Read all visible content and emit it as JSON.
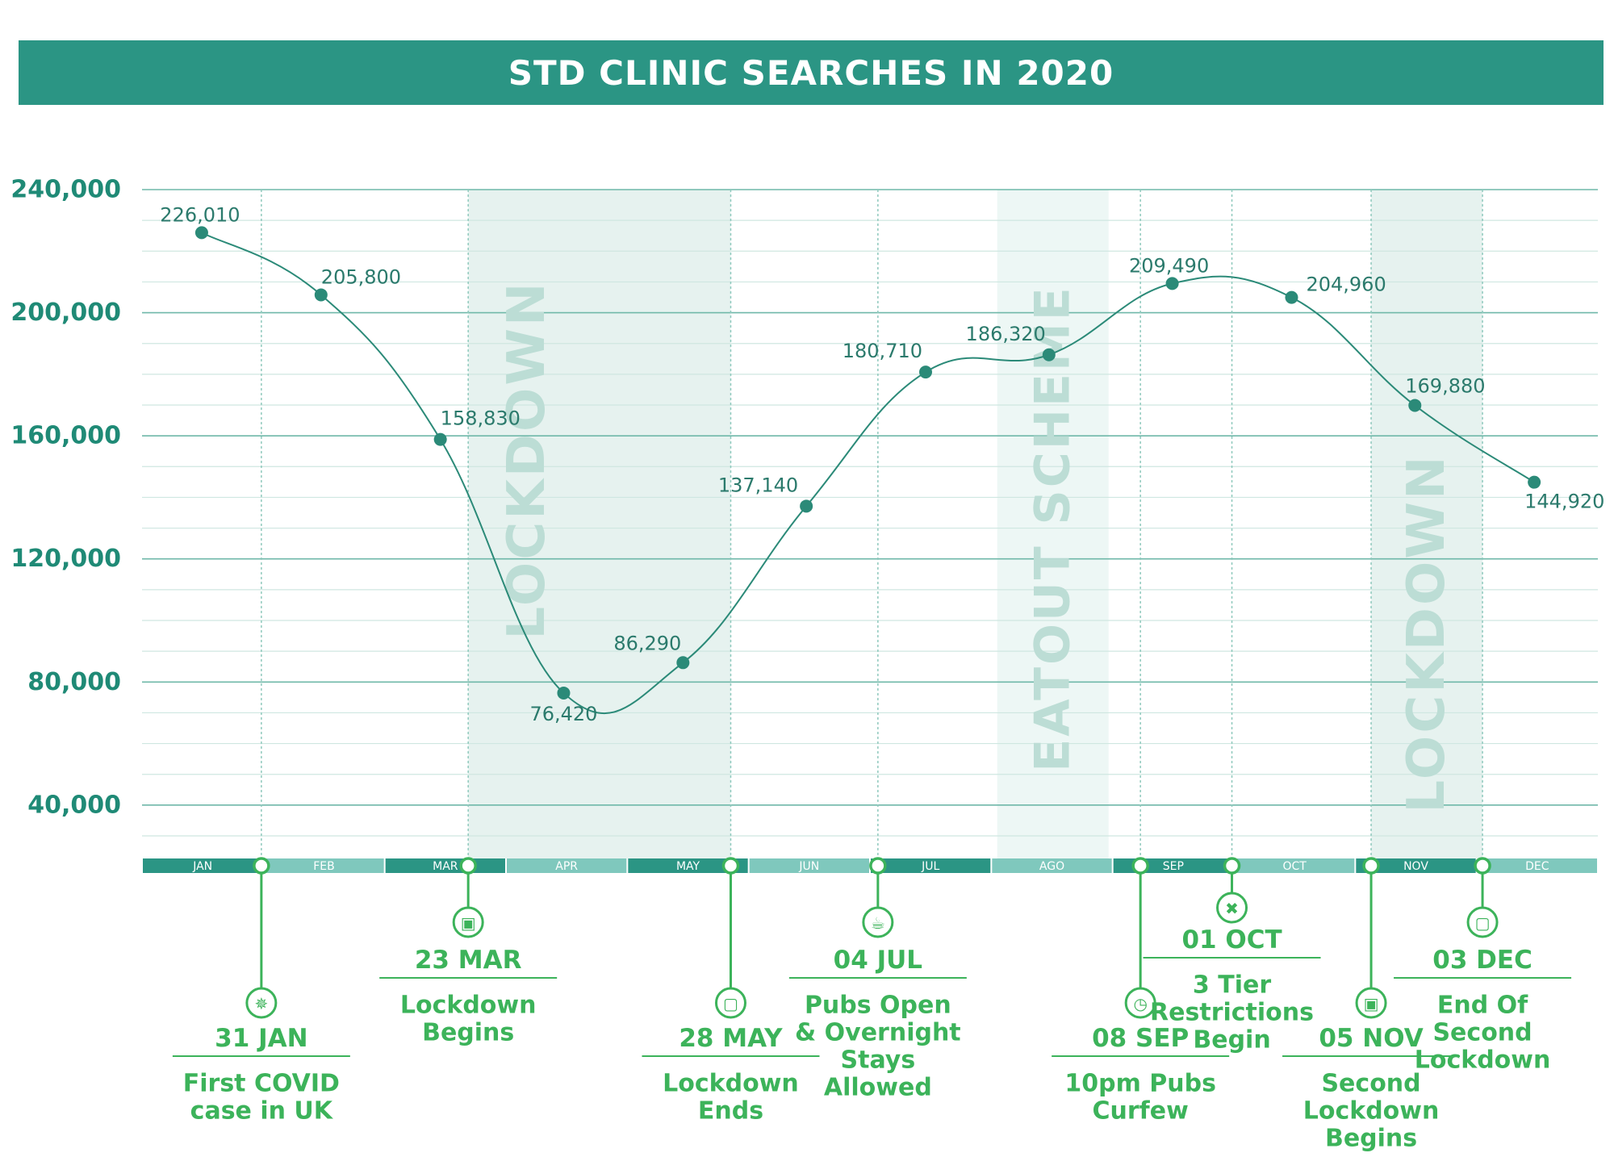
{
  "title": "STD CLINIC SEARCHES IN 2020",
  "colors": {
    "header": "#2b9584",
    "line": "#2b8a78",
    "point": "#2b8a78",
    "events": "#3cb35a",
    "month_dark": "#2b9584",
    "month_light": "#7fc8bd",
    "axis_label": "#1f8a76",
    "data_label": "#2b7a6c",
    "band_lockdown": "#e6f2ef",
    "band_eatout": "#edf7f5",
    "band_text": "#bcddd5",
    "grid_major": "#6fb8a9",
    "grid_minor": "#cfe7e1"
  },
  "chart_data": {
    "type": "line",
    "title": "STD CLINIC SEARCHES IN 2020",
    "xlabel": "",
    "ylabel": "",
    "ylim": [
      30000,
      240000
    ],
    "yticks": [
      40000,
      80000,
      120000,
      160000,
      200000,
      240000
    ],
    "ytick_labels": [
      "40,000",
      "80,000",
      "120,000",
      "160,000",
      "200,000",
      "240,000"
    ],
    "grid": true,
    "x_domain": [
      "2020-01-01",
      "2020-12-31"
    ],
    "months": [
      "JAN",
      "FEB",
      "MAR",
      "APR",
      "MAY",
      "JUN",
      "JUL",
      "AGO",
      "SEP",
      "OCT",
      "NOV",
      "DEC"
    ],
    "series": [
      {
        "points": [
          {
            "x": "2020-01-16",
            "y": 226010,
            "label": "226,010"
          },
          {
            "x": "2020-02-15",
            "y": 205800,
            "label": "205,800"
          },
          {
            "x": "2020-03-16",
            "y": 158830,
            "label": "158,830"
          },
          {
            "x": "2020-04-16",
            "y": 76420,
            "label": "76,420"
          },
          {
            "x": "2020-05-16",
            "y": 86290,
            "label": "86,290"
          },
          {
            "x": "2020-06-16",
            "y": 137140,
            "label": "137,140"
          },
          {
            "x": "2020-07-16",
            "y": 180710,
            "label": "180,710"
          },
          {
            "x": "2020-08-16",
            "y": 186320,
            "label": "186,320"
          },
          {
            "x": "2020-09-16",
            "y": 209490,
            "label": "209,490"
          },
          {
            "x": "2020-10-16",
            "y": 204960,
            "label": "204,960"
          },
          {
            "x": "2020-11-16",
            "y": 169880,
            "label": "169,880"
          },
          {
            "x": "2020-12-16",
            "y": 144920,
            "label": "144,920"
          }
        ]
      }
    ],
    "bands": [
      {
        "label": "LOCKDOWN",
        "start": "2020-03-23",
        "end": "2020-05-28",
        "kind": "lockdown"
      },
      {
        "label": "EATOUT SCHEME",
        "start": "2020-08-03",
        "end": "2020-08-31",
        "kind": "eatout"
      },
      {
        "label": "LOCKDOWN",
        "start": "2020-11-05",
        "end": "2020-12-03",
        "kind": "lockdown"
      }
    ],
    "events": [
      {
        "date": "2020-01-31",
        "date_label": "31 JAN",
        "text": [
          "First COVID",
          "case in UK"
        ],
        "icon": "virus-icon",
        "level": "low"
      },
      {
        "date": "2020-03-23",
        "date_label": "23 MAR",
        "text": [
          "Lockdown",
          "Begins"
        ],
        "icon": "lock-closed-icon",
        "level": "high"
      },
      {
        "date": "2020-05-28",
        "date_label": "28 MAY",
        "text": [
          "Lockdown",
          "Ends"
        ],
        "icon": "lock-open-icon",
        "level": "low"
      },
      {
        "date": "2020-07-04",
        "date_label": "04 JUL",
        "text": [
          "Pubs Open",
          "& Overnight",
          "Stays",
          "Allowed"
        ],
        "icon": "beer-icon",
        "level": "high"
      },
      {
        "date": "2020-09-08",
        "date_label": "08 SEP",
        "text": [
          "10pm Pubs",
          "Curfew"
        ],
        "icon": "clock-icon",
        "level": "low"
      },
      {
        "date": "2020-10-01",
        "date_label": "01 OCT",
        "text": [
          "3 Tier",
          "Restrictions",
          "Begin"
        ],
        "icon": "cross-icon",
        "level": "top"
      },
      {
        "date": "2020-11-05",
        "date_label": "05 NOV",
        "text": [
          "Second",
          "Lockdown",
          "Begins"
        ],
        "icon": "lock-closed-icon",
        "level": "low"
      },
      {
        "date": "2020-12-03",
        "date_label": "03 DEC",
        "text": [
          "End Of",
          "Second",
          "Lockdown"
        ],
        "icon": "lock-open-icon",
        "level": "high"
      }
    ]
  }
}
